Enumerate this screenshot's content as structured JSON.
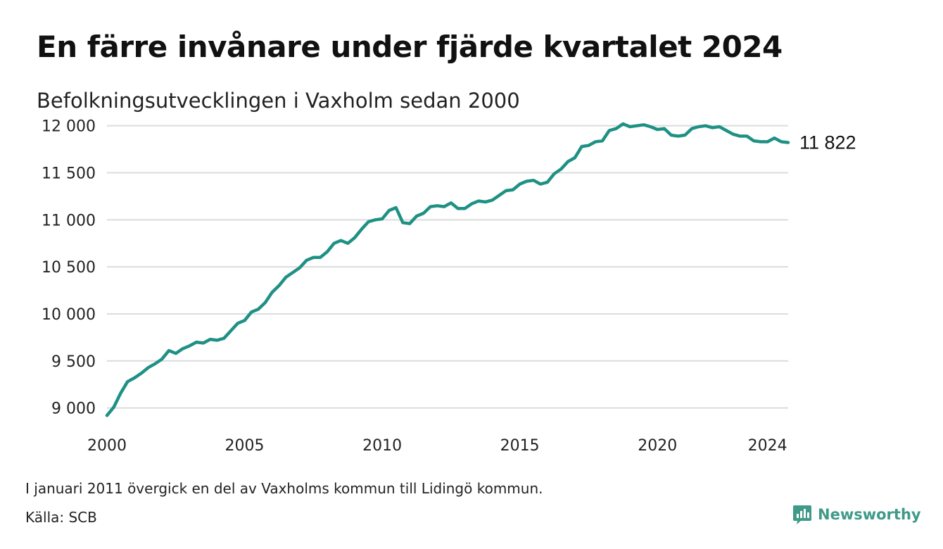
{
  "title": "En färre invånare under fjärde kvartalet 2024",
  "subtitle": "Befolkningsutvecklingen i Vaxholm sedan 2000",
  "note": "I januari 2011 övergick en del av Vaxholms kommun till Lidingö kommun.",
  "source": "Källa: SCB",
  "brand": {
    "name": "Newsworthy",
    "icon": "newsworthy-logo-icon",
    "color": "#3f9a89"
  },
  "chart_data": {
    "type": "line",
    "title": "",
    "xlabel": "",
    "ylabel": "",
    "line_color": "#1e9184",
    "grid": true,
    "xlim": [
      2000,
      2024.75
    ],
    "ylim": [
      8900,
      12050
    ],
    "x_ticks": [
      {
        "value": 2000,
        "label": "2000"
      },
      {
        "value": 2005,
        "label": "2005"
      },
      {
        "value": 2010,
        "label": "2010"
      },
      {
        "value": 2015,
        "label": "2015"
      },
      {
        "value": 2020,
        "label": "2020"
      },
      {
        "value": 2024,
        "label": "2024"
      }
    ],
    "y_ticks": [
      {
        "value": 9000,
        "label": "9 000"
      },
      {
        "value": 9500,
        "label": "9 500"
      },
      {
        "value": 10000,
        "label": "10 000"
      },
      {
        "value": 10500,
        "label": "10 500"
      },
      {
        "value": 11000,
        "label": "11 000"
      },
      {
        "value": 11500,
        "label": "11 500"
      },
      {
        "value": 12000,
        "label": "12 000"
      }
    ],
    "end_label": "11 822",
    "series": [
      {
        "x": [
          2000.0,
          2000.25,
          2000.5,
          2000.75,
          2001.0,
          2001.25,
          2001.5,
          2001.75,
          2002.0,
          2002.25,
          2002.5,
          2002.75,
          2003.0,
          2003.25,
          2003.5,
          2003.75,
          2004.0,
          2004.25,
          2004.5,
          2004.75,
          2005.0,
          2005.25,
          2005.5,
          2005.75,
          2006.0,
          2006.25,
          2006.5,
          2006.75,
          2007.0,
          2007.25,
          2007.5,
          2007.75,
          2008.0,
          2008.25,
          2008.5,
          2008.75,
          2009.0,
          2009.25,
          2009.5,
          2009.75,
          2010.0,
          2010.25,
          2010.5,
          2010.75,
          2011.0,
          2011.25,
          2011.5,
          2011.75,
          2012.0,
          2012.25,
          2012.5,
          2012.75,
          2013.0,
          2013.25,
          2013.5,
          2013.75,
          2014.0,
          2014.25,
          2014.5,
          2014.75,
          2015.0,
          2015.25,
          2015.5,
          2015.75,
          2016.0,
          2016.25,
          2016.5,
          2016.75,
          2017.0,
          2017.25,
          2017.5,
          2017.75,
          2018.0,
          2018.25,
          2018.5,
          2018.75,
          2019.0,
          2019.25,
          2019.5,
          2019.75,
          2020.0,
          2020.25,
          2020.5,
          2020.75,
          2021.0,
          2021.25,
          2021.5,
          2021.75,
          2022.0,
          2022.25,
          2022.5,
          2022.75,
          2023.0,
          2023.25,
          2023.5,
          2023.75,
          2024.0,
          2024.25,
          2024.5,
          2024.75
        ],
        "y": [
          8920,
          9010,
          9160,
          9280,
          9320,
          9370,
          9430,
          9470,
          9520,
          9610,
          9580,
          9630,
          9660,
          9700,
          9690,
          9730,
          9720,
          9740,
          9820,
          9900,
          9930,
          10020,
          10050,
          10120,
          10230,
          10300,
          10390,
          10440,
          10490,
          10570,
          10600,
          10600,
          10660,
          10750,
          10780,
          10750,
          10810,
          10900,
          10980,
          11000,
          11010,
          11100,
          11130,
          10970,
          10960,
          11040,
          11070,
          11140,
          11150,
          11140,
          11180,
          11120,
          11120,
          11170,
          11200,
          11190,
          11210,
          11260,
          11310,
          11320,
          11380,
          11410,
          11420,
          11380,
          11400,
          11490,
          11540,
          11620,
          11660,
          11780,
          11790,
          11830,
          11840,
          11950,
          11970,
          12020,
          11990,
          12000,
          12010,
          11990,
          11960,
          11970,
          11900,
          11890,
          11900,
          11970,
          11990,
          12000,
          11980,
          11990,
          11950,
          11910,
          11890,
          11890,
          11840,
          11830,
          11830,
          11870,
          11830,
          11822
        ]
      }
    ]
  }
}
